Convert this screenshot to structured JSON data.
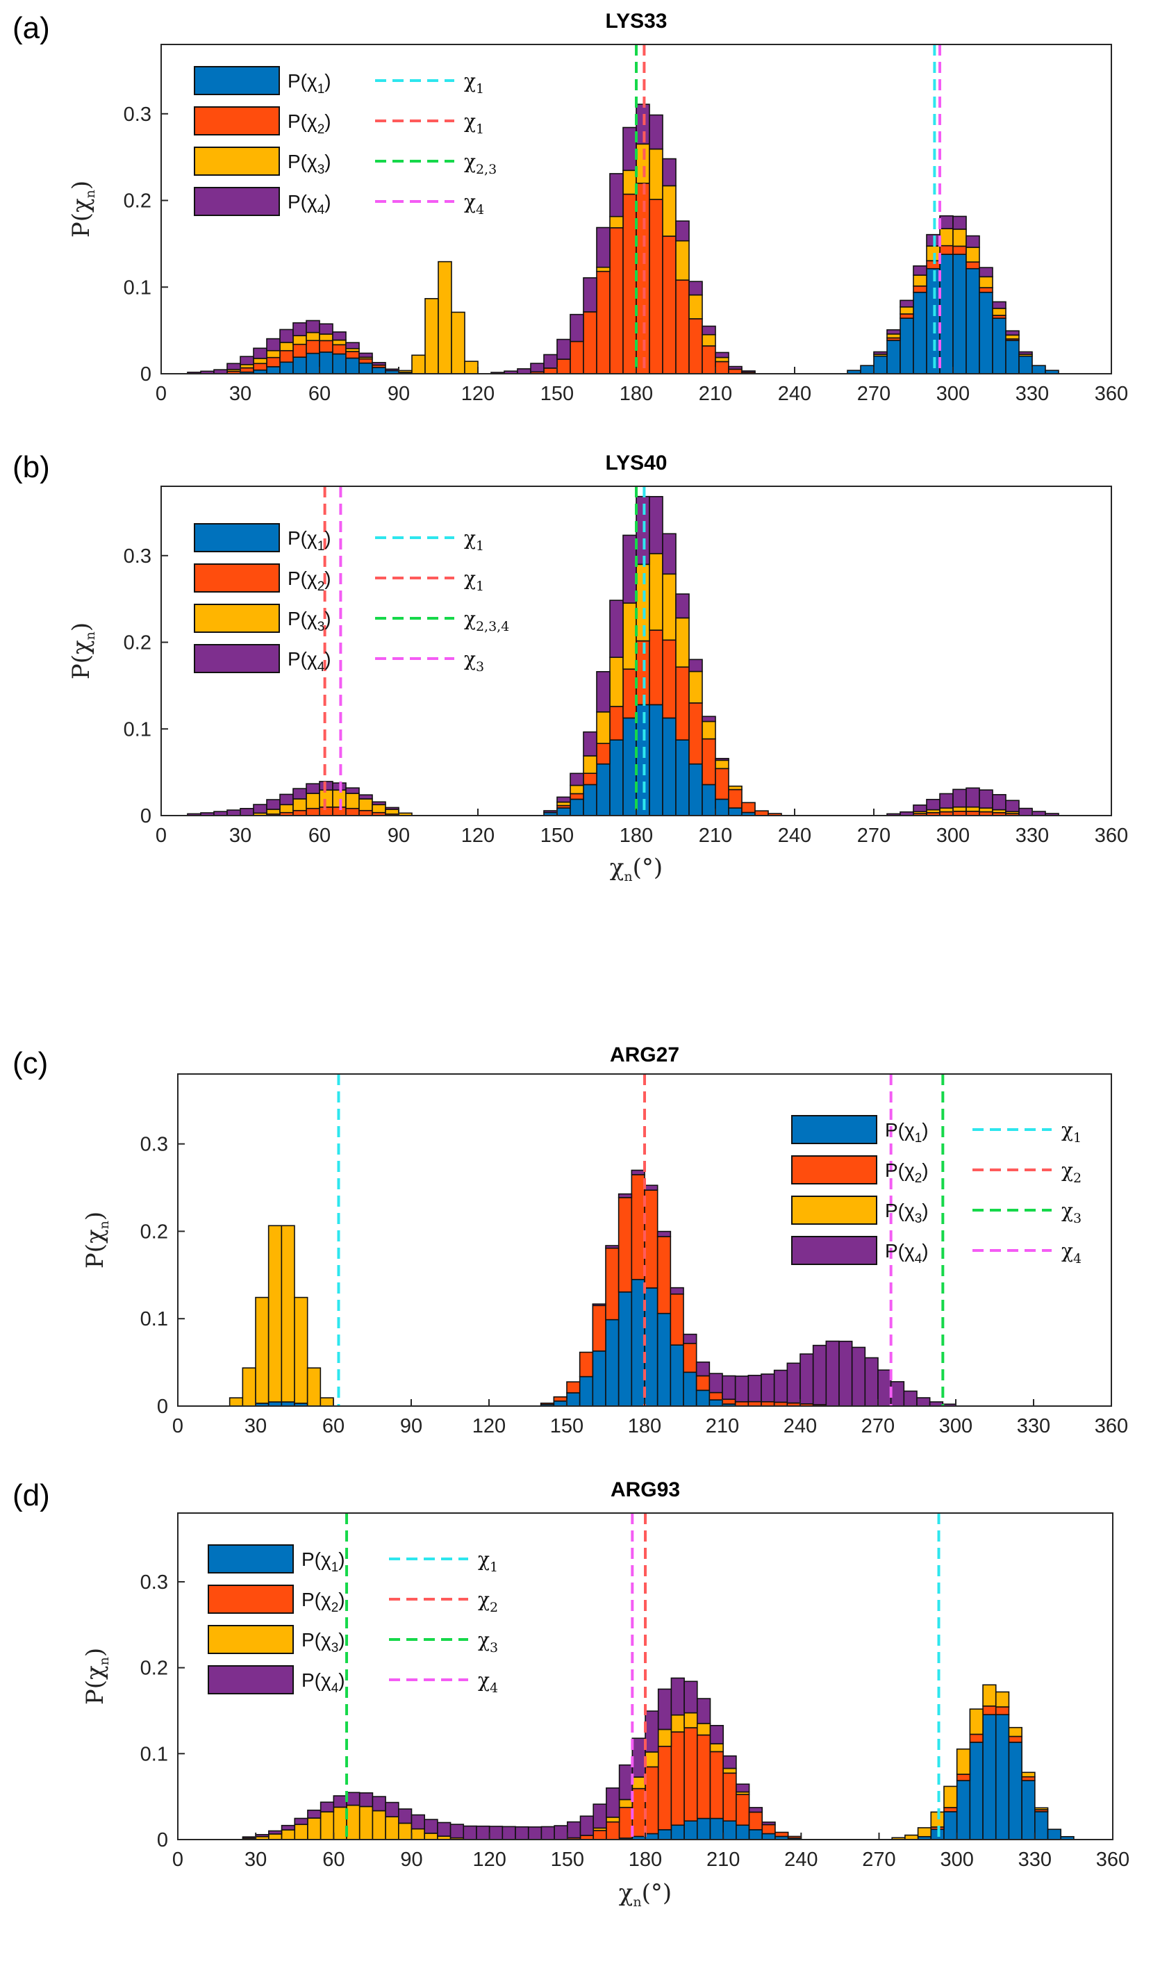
{
  "figure": {
    "colors": {
      "P(χ1)": "#0072bd",
      "P(χ2)": "#ff4d0d",
      "P(χ3)": "#ffb500",
      "P(χ4)": "#7e2f8e",
      "line_cyan": "#2ee6ee",
      "line_red": "#ff5b5b",
      "line_green": "#16d84a",
      "line_magenta": "#f45cf4"
    }
  },
  "chart_data": [
    {
      "panel_label": "(a)",
      "type": "bar",
      "stacked": true,
      "title": "LYS33",
      "xlabel": "",
      "ylabel": "P(χn)",
      "xlim": [
        0,
        360
      ],
      "ylim": [
        0,
        0.38
      ],
      "xticks": [
        "0",
        "30",
        "60",
        "90",
        "120",
        "150",
        "180",
        "210",
        "240",
        "270",
        "300",
        "330",
        "360"
      ],
      "yticks": [
        "0",
        "0.1",
        "0.2",
        "0.3"
      ],
      "legend": {
        "position": "top-left",
        "bars": [
          "P(χ1)",
          "P(χ2)",
          "P(χ3)",
          "P(χ4)"
        ],
        "lines": [
          {
            "name": "χ1",
            "color": "cyan"
          },
          {
            "name": "χ1",
            "color": "red"
          },
          {
            "name": "χ2,3",
            "color": "green"
          },
          {
            "name": "χ4",
            "color": "magenta"
          }
        ]
      },
      "vlines": [
        {
          "x": 293,
          "color": "cyan"
        },
        {
          "x": 183,
          "color": "red"
        },
        {
          "x": 180,
          "color": "green"
        },
        {
          "x": 295,
          "color": "magenta"
        }
      ],
      "series": [
        {
          "name": "P(χ1)",
          "peaks": [
            [
              62,
              13,
              0.025
            ],
            [
              300,
              14,
              0.14
            ]
          ]
        },
        {
          "name": "P(χ2)",
          "peaks": [
            [
              55,
              15,
              0.015
            ],
            [
              182,
              13,
              0.22
            ],
            [
              298,
              13,
              0.01
            ]
          ]
        },
        {
          "name": "P(χ3)",
          "peaks": [
            [
              52,
              14,
              0.01
            ],
            [
              107,
              5,
              0.13
            ],
            [
              190,
              10,
              0.06
            ],
            [
              300,
              13,
              0.02
            ]
          ]
        },
        {
          "name": "P(χ4)",
          "peaks": [
            [
              50,
              18,
              0.015
            ],
            [
              175,
              18,
              0.05
            ],
            [
              300,
              15,
              0.015
            ]
          ]
        }
      ]
    },
    {
      "panel_label": "(b)",
      "type": "bar",
      "stacked": true,
      "title": "LYS40",
      "xlabel": "χn(°)",
      "ylabel": "P(χn)",
      "xlim": [
        0,
        360
      ],
      "ylim": [
        0,
        0.38
      ],
      "xticks": [
        "0",
        "30",
        "60",
        "90",
        "120",
        "150",
        "180",
        "210",
        "240",
        "270",
        "300",
        "330",
        "360"
      ],
      "yticks": [
        "0",
        "0.1",
        "0.2",
        "0.3"
      ],
      "legend": {
        "position": "top-left",
        "bars": [
          "P(χ1)",
          "P(χ2)",
          "P(χ3)",
          "P(χ4)"
        ],
        "lines": [
          {
            "name": "χ1",
            "color": "cyan"
          },
          {
            "name": "χ1",
            "color": "red"
          },
          {
            "name": "χ2,3,4",
            "color": "green"
          },
          {
            "name": "χ3",
            "color": "magenta"
          }
        ]
      },
      "vlines": [
        {
          "x": 183,
          "color": "cyan"
        },
        {
          "x": 62,
          "color": "red"
        },
        {
          "x": 180,
          "color": "green"
        },
        {
          "x": 68,
          "color": "magenta"
        }
      ],
      "series": [
        {
          "name": "P(χ1)",
          "peaks": [
            [
              185,
              14,
              0.13
            ]
          ]
        },
        {
          "name": "P(χ2)",
          "peaks": [
            [
              65,
              12,
              0.01
            ],
            [
              192,
              15,
              0.09
            ],
            [
              305,
              14,
              0.005
            ]
          ]
        },
        {
          "name": "P(χ3)",
          "peaks": [
            [
              65,
              14,
              0.02
            ],
            [
              185,
              13,
              0.09
            ],
            [
              305,
              14,
              0.005
            ]
          ]
        },
        {
          "name": "P(χ4)",
          "peaks": [
            [
              50,
              20,
              0.012
            ],
            [
              180,
              12,
              0.08
            ],
            [
              308,
              14,
              0.022
            ]
          ]
        }
      ]
    },
    {
      "panel_label": "(c)",
      "type": "bar",
      "stacked": true,
      "title": "ARG27",
      "xlabel": "",
      "ylabel": "P(χn)",
      "xlim": [
        0,
        360
      ],
      "ylim": [
        0,
        0.38
      ],
      "xticks": [
        "0",
        "30",
        "60",
        "90",
        "120",
        "150",
        "180",
        "210",
        "240",
        "270",
        "300",
        "330",
        "360"
      ],
      "yticks": [
        "0",
        "0.1",
        "0.2",
        "0.3"
      ],
      "legend": {
        "position": "top-right",
        "bars": [
          "P(χ1)",
          "P(χ2)",
          "P(χ3)",
          "P(χ4)"
        ],
        "lines": [
          {
            "name": "χ1",
            "color": "cyan"
          },
          {
            "name": "χ2",
            "color": "red"
          },
          {
            "name": "χ3",
            "color": "green"
          },
          {
            "name": "χ4",
            "color": "magenta"
          }
        ]
      },
      "vlines": [
        {
          "x": 62,
          "color": "cyan"
        },
        {
          "x": 180,
          "color": "red"
        },
        {
          "x": 295,
          "color": "green"
        },
        {
          "x": 275,
          "color": "magenta"
        }
      ],
      "series": [
        {
          "name": "P(χ1)",
          "peaks": [
            [
              40,
              8,
              0.005
            ],
            [
              178,
              12,
              0.145
            ]
          ]
        },
        {
          "name": "P(χ2)",
          "peaks": [
            [
              178,
              12,
              0.12
            ],
            [
              225,
              15,
              0.005
            ]
          ]
        },
        {
          "name": "P(χ3)",
          "peaks": [
            [
              40,
              7,
              0.215
            ]
          ]
        },
        {
          "name": "P(χ4)",
          "peaks": [
            [
              180,
              12,
              0.005
            ],
            [
              215,
              12,
              0.025
            ],
            [
              255,
              16,
              0.075
            ]
          ]
        }
      ]
    },
    {
      "panel_label": "(d)",
      "type": "bar",
      "stacked": true,
      "title": "ARG93",
      "xlabel": "χn(°)",
      "ylabel": "P(χn)",
      "xlim": [
        0,
        360
      ],
      "ylim": [
        0,
        0.38
      ],
      "xticks": [
        "0",
        "30",
        "60",
        "90",
        "120",
        "150",
        "180",
        "210",
        "240",
        "270",
        "300",
        "330",
        "360"
      ],
      "yticks": [
        "0",
        "0.1",
        "0.2",
        "0.3"
      ],
      "legend": {
        "position": "top-left",
        "bars": [
          "P(χ1)",
          "P(χ2)",
          "P(χ3)",
          "P(χ4)"
        ],
        "lines": [
          {
            "name": "χ1",
            "color": "cyan"
          },
          {
            "name": "χ2",
            "color": "red"
          },
          {
            "name": "χ3",
            "color": "green"
          },
          {
            "name": "χ4",
            "color": "magenta"
          }
        ]
      },
      "vlines": [
        {
          "x": 293,
          "color": "cyan"
        },
        {
          "x": 180,
          "color": "red"
        },
        {
          "x": 65,
          "color": "green"
        },
        {
          "x": 175,
          "color": "magenta"
        }
      ],
      "series": [
        {
          "name": "P(χ1)",
          "peaks": [
            [
              205,
              14,
              0.025
            ],
            [
              315,
              10,
              0.15
            ]
          ]
        },
        {
          "name": "P(χ2)",
          "peaks": [
            [
              195,
              15,
              0.11
            ],
            [
              312,
              12,
              0.01
            ]
          ]
        },
        {
          "name": "P(χ3)",
          "peaks": [
            [
              68,
              16,
              0.04
            ],
            [
              190,
              14,
              0.02
            ],
            [
              305,
              12,
              0.03
            ]
          ]
        },
        {
          "name": "P(χ4)",
          "peaks": [
            [
              70,
              20,
              0.01
            ],
            [
              120,
              35,
              0.015
            ],
            [
              185,
              18,
              0.045
            ]
          ]
        }
      ]
    }
  ]
}
